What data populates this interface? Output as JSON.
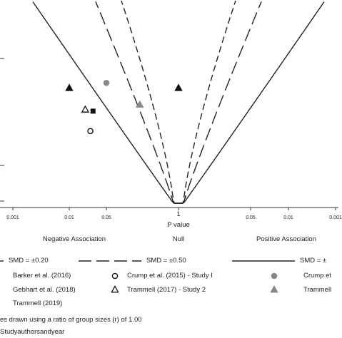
{
  "chart_data": {
    "type": "scatter",
    "xlabel": "P value",
    "x_ticks": [
      "0.001",
      "0.01",
      "0.05",
      "1",
      "0.05",
      "0.01",
      "0.001"
    ],
    "regions": [
      "Negative Association",
      "Null",
      "Positive Association"
    ],
    "contours": [
      {
        "label": "SMD = ±0.20",
        "style": "short-dash"
      },
      {
        "label": "SMD = ±0.50",
        "style": "long-dash"
      },
      {
        "label": "SMD = ±",
        "style": "solid"
      }
    ],
    "studies": [
      {
        "label": "Barker et al. (2016)",
        "marker": "filled-triangle",
        "x": 0.01,
        "side": "neg",
        "y": 0.72
      },
      {
        "label": "Crump et al. (2015) - Study I",
        "marker": "open-circle",
        "x": 0.025,
        "side": "neg",
        "y": 0.46
      },
      {
        "label": "Crump et",
        "marker": "filled-circle",
        "x": 0.05,
        "side": "neg",
        "y": 0.75
      },
      {
        "label": "Gebhart et al. (2018)",
        "marker": "filled-square",
        "x": 0.028,
        "side": "neg",
        "y": 0.58
      },
      {
        "label": "Trammell (2017) - Study 2",
        "marker": "open-triangle",
        "x": 0.02,
        "side": "neg",
        "y": 0.59
      },
      {
        "label": "Trammell",
        "marker": "gray-triangle",
        "x": 0.2,
        "side": "neg",
        "y": 0.62
      },
      {
        "label": "Trammell (2019)",
        "marker": "filled-triangle",
        "x": 1,
        "side": "null",
        "y": 0.72
      }
    ],
    "notes": [
      "es drawn using a ratio of group sizes (r) of 1.00",
      "Studyauthorsandyear"
    ]
  }
}
